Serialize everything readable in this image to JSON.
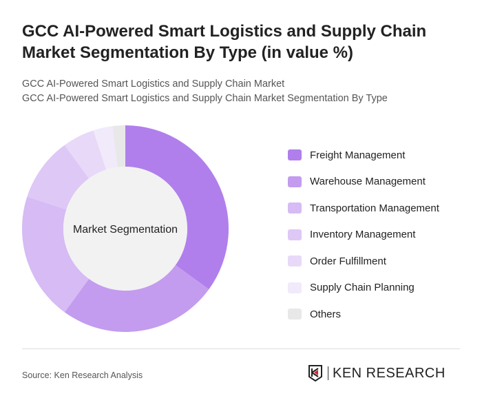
{
  "title": "GCC AI-Powered Smart Logistics and Supply Chain Market Segmentation By Type (in value %)",
  "subtitle1": "GCC AI-Powered Smart Logistics and Supply Chain Market",
  "subtitle2": "GCC AI-Powered Smart Logistics and Supply Chain Market Segmentation By Type",
  "source": "Source: Ken Research Analysis",
  "logo_text": "KEN RESEARCH",
  "chart_data": {
    "type": "pie",
    "donut": true,
    "center_label": "Market Segmentation",
    "legend_position": "right",
    "categories": [
      "Freight Management",
      "Warehouse Management",
      "Transportation Management",
      "Inventory Management",
      "Order Fulfillment",
      "Supply Chain Planning",
      "Others"
    ],
    "values": [
      35,
      25,
      20,
      10,
      5,
      3,
      2
    ],
    "colors": [
      "#b07fec",
      "#c39cef",
      "#d6bbf5",
      "#dec8f6",
      "#e8d9f8",
      "#f1eafb",
      "#e8e8e8"
    ]
  }
}
